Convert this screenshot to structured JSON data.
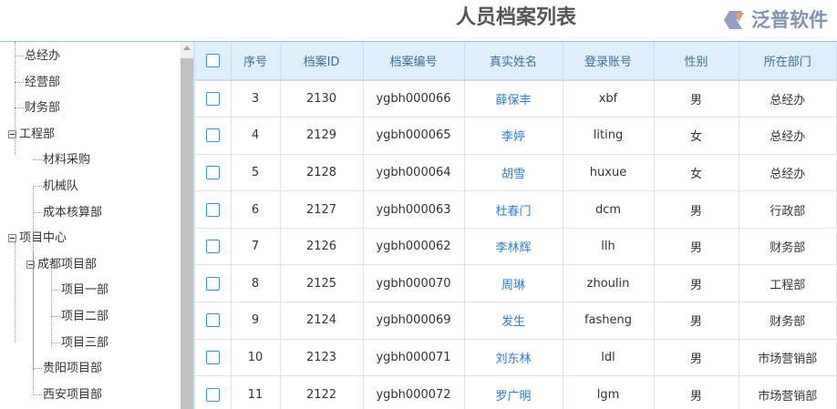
{
  "title": "人员档案列表",
  "tree": [
    {
      "label": "总经办",
      "level": 0,
      "toggle": false
    },
    {
      "label": "经营部",
      "level": 0,
      "toggle": false
    },
    {
      "label": "财务部",
      "level": 0,
      "toggle": false
    },
    {
      "label": "工程部",
      "level": 0,
      "toggle": true
    },
    {
      "label": "材料采购",
      "level": 1,
      "toggle": false
    },
    {
      "label": "机械队",
      "level": 1,
      "toggle": false
    },
    {
      "label": "成本核算部",
      "level": 1,
      "toggle": false
    },
    {
      "label": "项目中心",
      "level": 0,
      "toggle": true
    },
    {
      "label": "成都项目部",
      "level": 1,
      "toggle": true
    },
    {
      "label": "项目一部",
      "level": 2,
      "toggle": false
    },
    {
      "label": "项目二部",
      "level": 2,
      "toggle": false
    },
    {
      "label": "项目三部",
      "level": 2,
      "toggle": false
    },
    {
      "label": "贵阳项目部",
      "level": 1,
      "toggle": false
    },
    {
      "label": "西安项目部",
      "level": 1,
      "toggle": false
    }
  ],
  "columns": [
    "序号",
    "档案ID",
    "档案编号",
    "真实姓名",
    "登录账号",
    "性别",
    "所在部门"
  ],
  "rows": [
    [
      "3",
      "2130",
      "ygbh000066",
      "薛保丰",
      "xbf",
      "男",
      "总经办"
    ],
    [
      "4",
      "2129",
      "ygbh000065",
      "李婷",
      "liting",
      "女",
      "总经办"
    ],
    [
      "5",
      "2128",
      "ygbh000064",
      "胡雪",
      "huxue",
      "女",
      "总经办"
    ],
    [
      "6",
      "2127",
      "ygbh000063",
      "杜春门",
      "dcm",
      "男",
      "行政部"
    ],
    [
      "7",
      "2126",
      "ygbh000062",
      "李林辉",
      "llh",
      "男",
      "财务部"
    ],
    [
      "8",
      "2125",
      "ygbh000070",
      "周琳",
      "zhoulin",
      "男",
      "工程部"
    ],
    [
      "9",
      "2124",
      "ygbh000069",
      "发生",
      "fasheng",
      "男",
      "财务部"
    ],
    [
      "10",
      "2123",
      "ygbh000071",
      "刘东林",
      "ldl",
      "男",
      "市场营销部"
    ],
    [
      "11",
      "2122",
      "ygbh000072",
      "罗广明",
      "lgm",
      "男",
      "市场营销部"
    ]
  ],
  "watermark": "泛普软件",
  "colors": {
    "header_bg": "#deeefb",
    "name_link": "#2b7fd6",
    "checkbox": "#3e8fd6"
  }
}
